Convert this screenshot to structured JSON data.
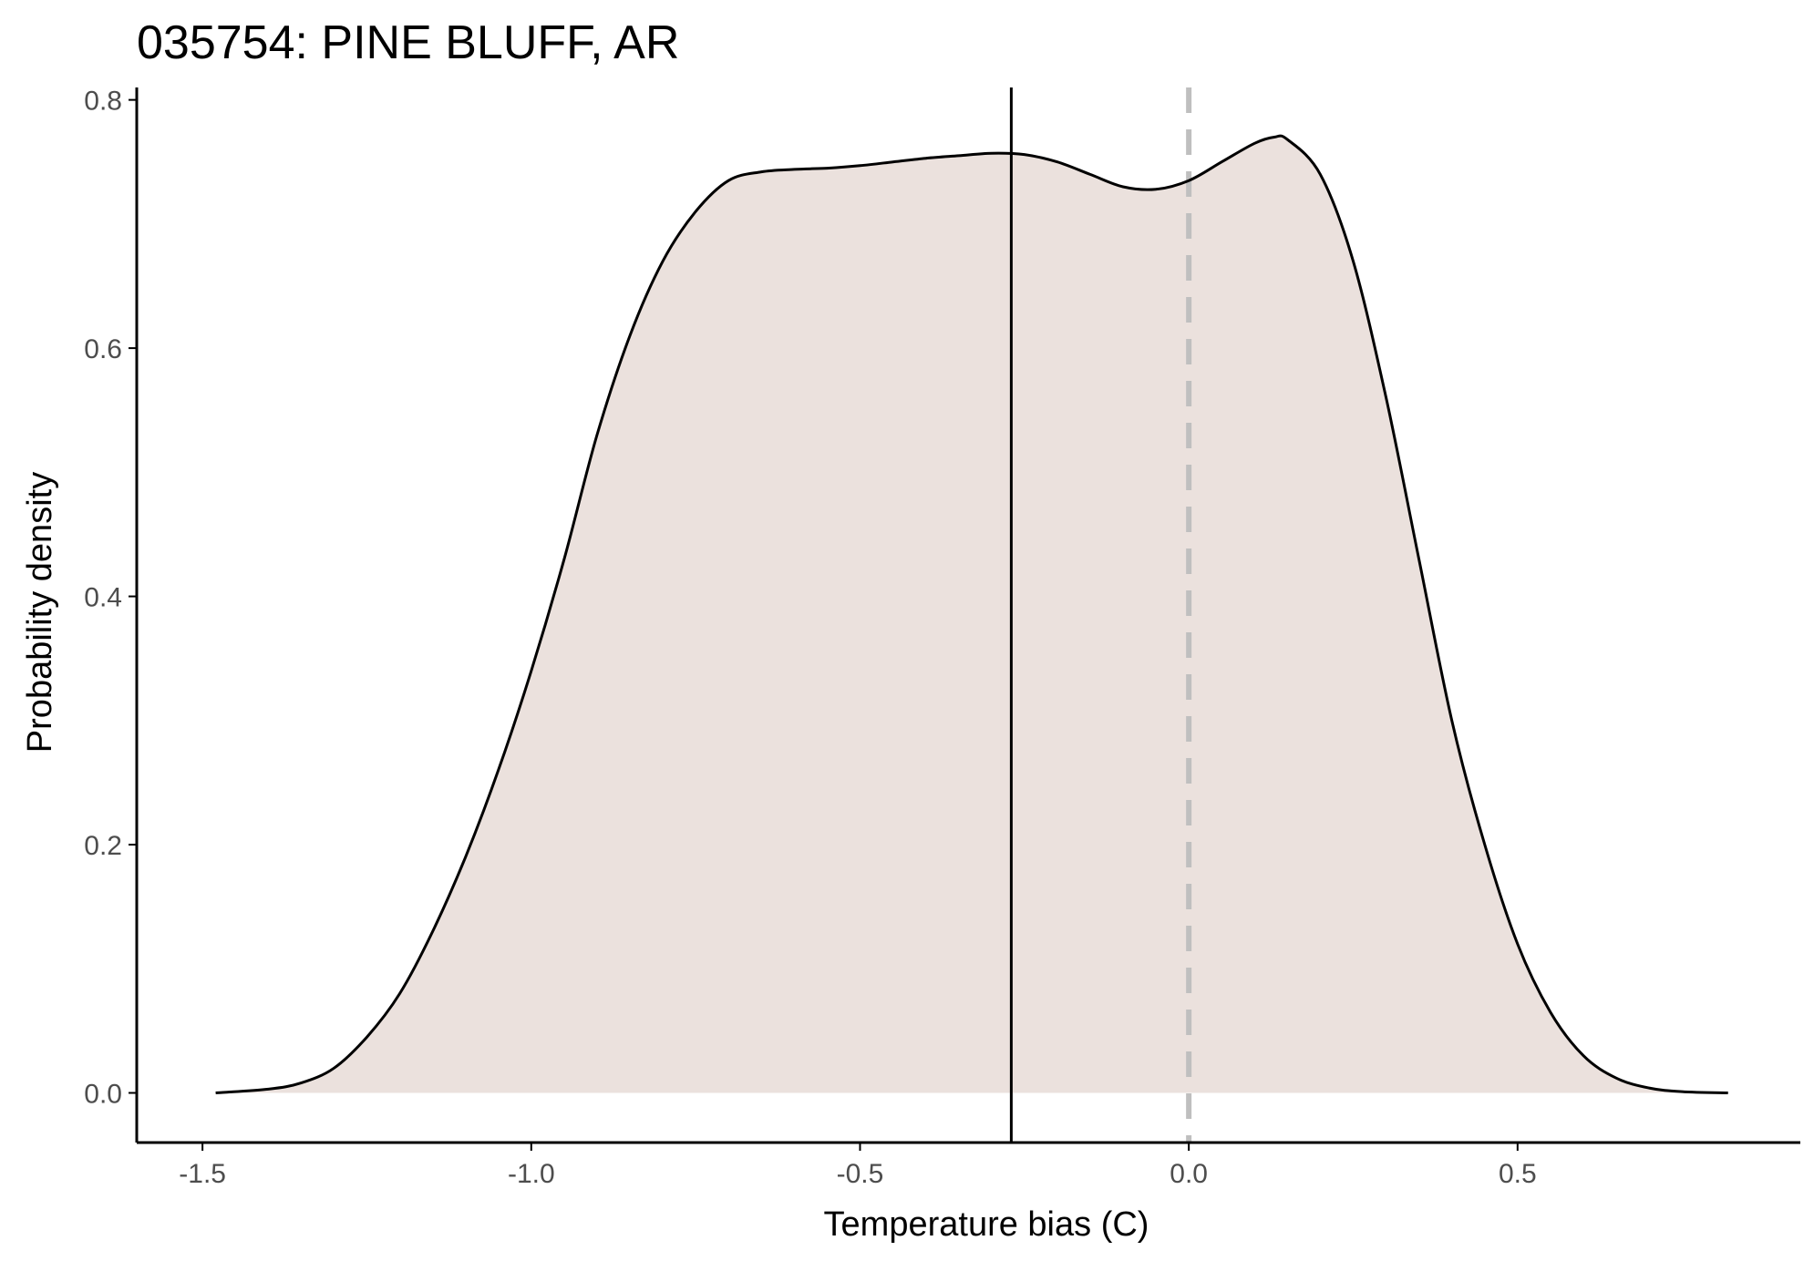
{
  "colors": {
    "background": "#ffffff",
    "density_fill": "#ebe1dd",
    "density_line": "#000000",
    "mean_line": "#000000",
    "zero_line": "#bfbfbf",
    "axis": "#000000",
    "tick_label": "#4d4d4d"
  },
  "chart_data": {
    "type": "area",
    "title": "035754: PINE BLUFF, AR",
    "xlabel": "Temperature bias (C)",
    "ylabel": "Probability density",
    "xlim": [
      -1.6,
      0.93
    ],
    "ylim": [
      -0.04,
      0.81
    ],
    "grid": false,
    "legend": "none",
    "x_ticks": [
      -1.5,
      -1.0,
      -0.5,
      0.0,
      0.5
    ],
    "x_tick_labels": [
      "-1.5",
      "-1.0",
      "-0.5",
      "0.0",
      "0.5"
    ],
    "y_ticks": [
      0.0,
      0.2,
      0.4,
      0.6,
      0.8
    ],
    "y_tick_labels": [
      "0.0",
      "0.2",
      "0.4",
      "0.6",
      "0.8"
    ],
    "density": {
      "x": [
        -1.48,
        -1.4,
        -1.35,
        -1.3,
        -1.25,
        -1.2,
        -1.15,
        -1.1,
        -1.05,
        -1.0,
        -0.95,
        -0.9,
        -0.85,
        -0.8,
        -0.75,
        -0.7,
        -0.65,
        -0.6,
        -0.55,
        -0.5,
        -0.45,
        -0.4,
        -0.35,
        -0.3,
        -0.25,
        -0.2,
        -0.15,
        -0.1,
        -0.05,
        0.0,
        0.05,
        0.1,
        0.13,
        0.15,
        0.2,
        0.25,
        0.3,
        0.35,
        0.4,
        0.45,
        0.5,
        0.55,
        0.6,
        0.65,
        0.7,
        0.75,
        0.82
      ],
      "y": [
        0.0,
        0.003,
        0.008,
        0.02,
        0.045,
        0.08,
        0.13,
        0.19,
        0.26,
        0.34,
        0.43,
        0.53,
        0.61,
        0.67,
        0.71,
        0.735,
        0.742,
        0.744,
        0.745,
        0.747,
        0.75,
        0.753,
        0.755,
        0.757,
        0.756,
        0.75,
        0.74,
        0.73,
        0.728,
        0.735,
        0.75,
        0.765,
        0.77,
        0.768,
        0.74,
        0.67,
        0.56,
        0.43,
        0.3,
        0.2,
        0.12,
        0.065,
        0.03,
        0.012,
        0.004,
        0.001,
        0.0
      ]
    },
    "mean_line_x": -0.27,
    "zero_line_x": 0.0
  }
}
